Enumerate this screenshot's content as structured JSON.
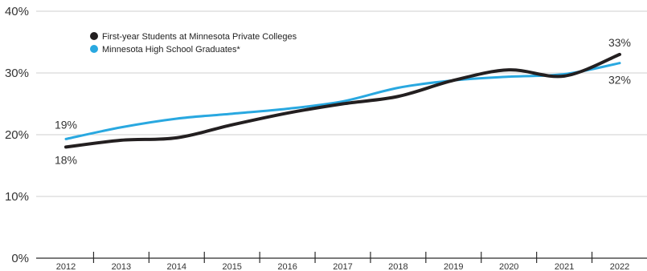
{
  "chart_data": {
    "type": "line",
    "title": "",
    "xlabel": "",
    "ylabel": "",
    "x": [
      "2012",
      "2013",
      "2014",
      "2015",
      "2016",
      "2017",
      "2018",
      "2019",
      "2020",
      "2021",
      "2022"
    ],
    "ylim": [
      0,
      40
    ],
    "yticks": [
      {
        "value": 0,
        "label": "0%"
      },
      {
        "value": 10,
        "label": "10%"
      },
      {
        "value": 20,
        "label": "20%"
      },
      {
        "value": 30,
        "label": "30%"
      },
      {
        "value": 40,
        "label": "40%"
      }
    ],
    "grid": true,
    "legend_position": "top-left",
    "series": [
      {
        "name": "First-year Students at Minnesota Private Colleges",
        "color": "#231f20",
        "values": [
          18,
          19.1,
          19.5,
          21.6,
          23.5,
          25,
          26.2,
          28.8,
          30.5,
          29.5,
          33
        ],
        "start_label": "18%",
        "end_label": "33%"
      },
      {
        "name": "Minnesota High School Graduates*",
        "color": "#29a8e0",
        "values": [
          19.3,
          21.2,
          22.6,
          23.4,
          24.2,
          25.4,
          27.6,
          28.8,
          29.4,
          29.8,
          31.6
        ],
        "start_label": "19%",
        "end_label": "32%"
      }
    ]
  }
}
